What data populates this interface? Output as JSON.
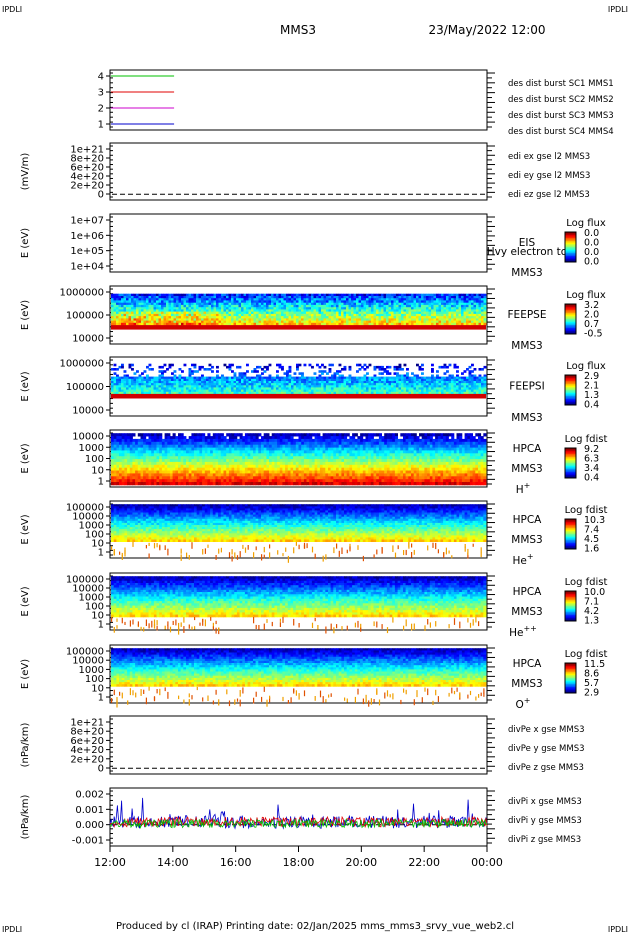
{
  "corner_label": "IPDLI",
  "header": {
    "title": "MMS3",
    "datetime": "23/May/2022 12:00"
  },
  "footer": "Produced by cl (IRAP)   Printing date: 02/Jan/2025   mms_mms3_srvy_vue_web2.cl",
  "colors": {
    "red": "#e00000",
    "green": "#00c000",
    "blue": "#0000cc",
    "magenta": "#cc00cc"
  },
  "chart_data": [
    {
      "type": "line",
      "id": "burst",
      "yticks": [
        "4",
        "3",
        "2",
        "1"
      ],
      "series": [
        {
          "name": "des dist burst SC1 MMS1",
          "color": "blue",
          "level": 1,
          "x_range": [
            "12:00",
            "14:00"
          ]
        },
        {
          "name": "des dist burst SC2 MMS2",
          "color": "magenta",
          "level": 2,
          "x_range": [
            "12:00",
            "14:00"
          ]
        },
        {
          "name": "des dist burst SC3 MMS3",
          "color": "red",
          "level": 3,
          "x_range": [
            "12:00",
            "14:00"
          ]
        },
        {
          "name": "des dist burst SC4 MMS4",
          "color": "green",
          "level": 4,
          "x_range": [
            "12:00",
            "14:00"
          ]
        }
      ]
    },
    {
      "type": "line",
      "id": "edi",
      "ylabel": "(mV/m)",
      "yticks": [
        "1e+21",
        "8e+20",
        "6e+20",
        "4e+20",
        "2e+20",
        "0"
      ],
      "series": [
        {
          "name": "edi ex gse l2 MMS3",
          "color": "red"
        },
        {
          "name": "edi ey gse l2 MMS3",
          "color": "green"
        },
        {
          "name": "edi ez gse l2 MMS3",
          "color": "blue"
        }
      ]
    },
    {
      "type": "heatmap",
      "id": "eis",
      "ylabel": "E (eV)",
      "yticks": [
        "1e+07",
        "1e+06",
        "1e+05",
        "1e+04"
      ],
      "labels": [
        "EIS",
        "Hvy electron to",
        "MMS3"
      ],
      "cbar_title": "Log flux",
      "cbar_ticks": [
        "0.0",
        "0.0",
        "0.0",
        "0.0"
      ]
    },
    {
      "type": "heatmap",
      "id": "feepse",
      "ylabel": "E (eV)",
      "yticks": [
        "1000000",
        "100000",
        "10000"
      ],
      "labels": [
        "FEEPSE",
        "MMS3"
      ],
      "cbar_title": "Log flux",
      "cbar_ticks": [
        "3.2",
        "2.0",
        "0.7",
        "-0.5"
      ]
    },
    {
      "type": "heatmap",
      "id": "feepsi",
      "ylabel": "E (eV)",
      "yticks": [
        "1000000",
        "100000",
        "10000"
      ],
      "labels": [
        "FEEPSI",
        "MMS3"
      ],
      "cbar_title": "Log flux",
      "cbar_ticks": [
        "2.9",
        "2.1",
        "1.3",
        "0.4"
      ]
    },
    {
      "type": "heatmap",
      "id": "hpca_h",
      "ylabel": "E (eV)",
      "yticks": [
        "10000",
        "1000",
        "100",
        "10",
        "1"
      ],
      "labels": [
        "HPCA",
        "MMS3"
      ],
      "species": "H",
      "species_sup": "+",
      "cbar_title": "Log fdist",
      "cbar_ticks": [
        "9.2",
        "6.3",
        "3.4",
        "0.4"
      ]
    },
    {
      "type": "heatmap",
      "id": "hpca_he",
      "ylabel": "E (eV)",
      "yticks": [
        "100000",
        "10000",
        "1000",
        "100",
        "10",
        "1"
      ],
      "labels": [
        "HPCA",
        "MMS3"
      ],
      "species": "He",
      "species_sup": "+",
      "cbar_title": "Log fdist",
      "cbar_ticks": [
        "10.3",
        "7.4",
        "4.5",
        "1.6"
      ]
    },
    {
      "type": "heatmap",
      "id": "hpca_hepp",
      "ylabel": "E (eV)",
      "yticks": [
        "100000",
        "10000",
        "1000",
        "100",
        "10",
        "1"
      ],
      "labels": [
        "HPCA",
        "MMS3"
      ],
      "species": "He",
      "species_sup": "++",
      "cbar_title": "Log fdist",
      "cbar_ticks": [
        "10.0",
        "7.1",
        "4.2",
        "1.3"
      ]
    },
    {
      "type": "heatmap",
      "id": "hpca_o",
      "ylabel": "E (eV)",
      "yticks": [
        "100000",
        "10000",
        "1000",
        "100",
        "10",
        "1"
      ],
      "labels": [
        "HPCA",
        "MMS3"
      ],
      "species": "O",
      "species_sup": "+",
      "cbar_title": "Log fdist",
      "cbar_ticks": [
        "11.5",
        "8.6",
        "5.7",
        "2.9"
      ]
    },
    {
      "type": "line",
      "id": "divpe",
      "ylabel": "(nPa/km)",
      "yticks": [
        "1e+21",
        "8e+20",
        "6e+20",
        "4e+20",
        "2e+20",
        "0"
      ],
      "series": [
        {
          "name": "divPe x gse MMS3",
          "color": "red"
        },
        {
          "name": "divPe y gse MMS3",
          "color": "green"
        },
        {
          "name": "divPe z gse MMS3",
          "color": "blue"
        }
      ]
    },
    {
      "type": "line",
      "id": "divpi",
      "ylabel": "(nPa/km)",
      "yticks": [
        "0.002",
        "0.001",
        "0.000",
        "-0.001"
      ],
      "ylim": [
        -0.0015,
        0.0026
      ],
      "series": [
        {
          "name": "divPi x gse MMS3",
          "color": "red"
        },
        {
          "name": "divPi y gse MMS3",
          "color": "green"
        },
        {
          "name": "divPi z gse MMS3",
          "color": "blue"
        }
      ]
    }
  ],
  "xaxis": {
    "ticks": [
      "12:00",
      "14:00",
      "16:00",
      "18:00",
      "20:00",
      "22:00",
      "00:00"
    ]
  }
}
